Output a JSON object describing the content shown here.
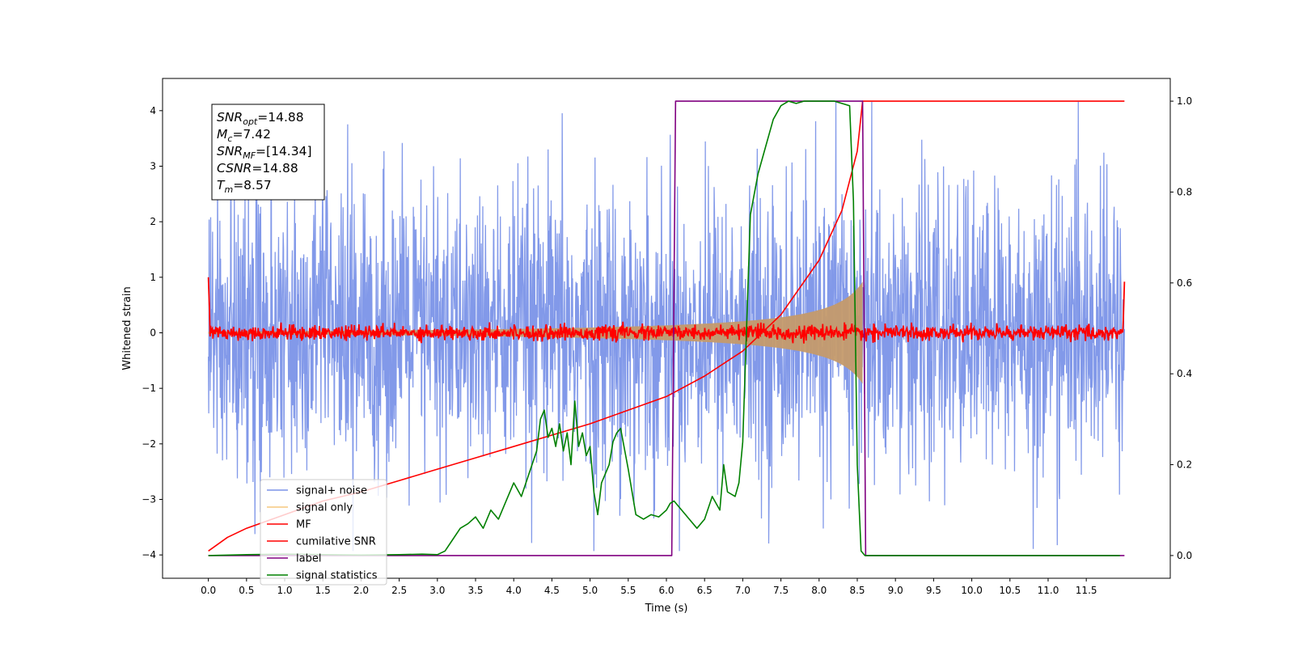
{
  "chart_data": {
    "type": "line",
    "xlabel": "Time (s)",
    "ylabel": "Whitened strain",
    "xlim": [
      -0.6,
      12.6
    ],
    "ylim": [
      -4.42,
      4.58
    ],
    "y2lim": [
      -0.05,
      1.05
    ],
    "x_ticks": [
      0.0,
      0.5,
      1.0,
      1.5,
      2.0,
      2.5,
      3.0,
      3.5,
      4.0,
      4.5,
      5.0,
      5.5,
      6.0,
      6.5,
      7.0,
      7.5,
      8.0,
      8.5,
      9.0,
      9.5,
      10.0,
      10.5,
      11.0,
      11.5
    ],
    "x_tick_labels": [
      "0.0",
      "0.5",
      "1.0",
      "1.5",
      "2.0",
      "2.5",
      "3.0",
      "3.5",
      "4.0",
      "4.5",
      "5.0",
      "5.5",
      "6.0",
      "6.5",
      "7.0",
      "7.5",
      "8.0",
      "8.5",
      "9.0",
      "9.5",
      "10.0",
      "10.5",
      "11.0",
      "11.5"
    ],
    "y_ticks": [
      -4,
      -3,
      -2,
      -1,
      0,
      1,
      2,
      3,
      4
    ],
    "y_tick_labels": [
      "−4",
      "−3",
      "−2",
      "−1",
      "0",
      "1",
      "2",
      "3",
      "4"
    ],
    "y2_ticks": [
      0.0,
      0.2,
      0.4,
      0.6,
      0.8,
      1.0
    ],
    "y2_tick_labels": [
      "0.0",
      "0.2",
      "0.4",
      "0.6",
      "0.8",
      "1.0"
    ],
    "grid": false,
    "legend_position": "lower-left",
    "info_box": {
      "snr_opt": {
        "base": "SNR",
        "sub": "opt",
        "value": "=14.88"
      },
      "mc": {
        "base": "M",
        "sub": "c",
        "value": "=7.42"
      },
      "snr_mf": {
        "base": "SNR",
        "sub": "MF",
        "value": "=[14.34]"
      },
      "csnr": {
        "base": "CSNR",
        "value": "=14.88"
      },
      "tm": {
        "base": "T",
        "sub": "m",
        "value": "=8.57"
      }
    },
    "series": [
      {
        "name": "signal+ noise",
        "color": "#7b93e8",
        "axis": "left",
        "description_values": {
          "x_range": [
            0.0,
            12.0
          ],
          "typical_amplitude": 1.2,
          "max": 4.16,
          "min": -3.93
        }
      },
      {
        "name": "signal only",
        "color": "#f5c77e",
        "axis": "left",
        "chirp": {
          "start": 0.0,
          "end": 8.57,
          "amp_start": 0.02,
          "amp_end": 0.92
        }
      },
      {
        "name": "MF",
        "color": "#ff0000",
        "axis": "left",
        "description_values": {
          "baseline": 0.0,
          "noise_amplitude": 0.12,
          "start_value": 1.0,
          "end_value": 0.92
        }
      },
      {
        "name": "cumilative SNR",
        "color": "#ff0000",
        "axis": "right",
        "x": [
          0.0,
          0.25,
          0.5,
          1.0,
          1.5,
          2.0,
          2.5,
          3.0,
          3.5,
          4.0,
          4.5,
          5.0,
          5.5,
          6.0,
          6.5,
          7.0,
          7.5,
          8.0,
          8.3,
          8.5,
          8.57,
          12.0
        ],
        "y": [
          0.01,
          0.04,
          0.06,
          0.09,
          0.12,
          0.14,
          0.165,
          0.19,
          0.215,
          0.24,
          0.265,
          0.29,
          0.32,
          0.35,
          0.395,
          0.45,
          0.53,
          0.65,
          0.76,
          0.89,
          1.0,
          1.0
        ]
      },
      {
        "name": "label",
        "color": "#800080",
        "axis": "right",
        "x": [
          0.0,
          6.07,
          6.12,
          8.57,
          8.61,
          12.0
        ],
        "y": [
          0.0,
          0.0,
          1.0,
          1.0,
          0.0,
          0.0
        ]
      },
      {
        "name": "signal statistics",
        "color": "#008000",
        "axis": "right",
        "x": [
          0.0,
          0.5,
          1.0,
          1.5,
          2.0,
          2.5,
          2.8,
          3.0,
          3.1,
          3.2,
          3.3,
          3.4,
          3.5,
          3.6,
          3.7,
          3.8,
          3.9,
          4.0,
          4.1,
          4.2,
          4.3,
          4.35,
          4.4,
          4.45,
          4.5,
          4.55,
          4.6,
          4.65,
          4.7,
          4.75,
          4.8,
          4.85,
          4.9,
          4.95,
          5.0,
          5.05,
          5.1,
          5.15,
          5.2,
          5.25,
          5.3,
          5.35,
          5.4,
          5.5,
          5.6,
          5.7,
          5.8,
          5.9,
          6.0,
          6.05,
          6.1,
          6.2,
          6.3,
          6.4,
          6.5,
          6.6,
          6.7,
          6.75,
          6.8,
          6.9,
          6.95,
          7.0,
          7.05,
          7.1,
          7.2,
          7.3,
          7.4,
          7.5,
          7.6,
          7.7,
          7.8,
          8.0,
          8.2,
          8.4,
          8.45,
          8.5,
          8.55,
          8.6,
          9.0,
          10.0,
          11.0,
          11.94
        ],
        "y": [
          0.0,
          0.002,
          0.003,
          0.002,
          0.001,
          0.002,
          0.003,
          0.002,
          0.01,
          0.035,
          0.06,
          0.07,
          0.085,
          0.06,
          0.1,
          0.08,
          0.12,
          0.16,
          0.13,
          0.18,
          0.23,
          0.3,
          0.32,
          0.26,
          0.28,
          0.24,
          0.29,
          0.23,
          0.27,
          0.2,
          0.34,
          0.24,
          0.27,
          0.22,
          0.24,
          0.14,
          0.09,
          0.16,
          0.18,
          0.2,
          0.25,
          0.27,
          0.28,
          0.19,
          0.09,
          0.08,
          0.09,
          0.085,
          0.1,
          0.115,
          0.12,
          0.1,
          0.08,
          0.06,
          0.08,
          0.13,
          0.1,
          0.2,
          0.14,
          0.13,
          0.16,
          0.25,
          0.5,
          0.75,
          0.84,
          0.9,
          0.96,
          0.99,
          1.0,
          0.995,
          1.0,
          1.0,
          1.0,
          0.99,
          0.78,
          0.2,
          0.01,
          0.0,
          0.0,
          0.0,
          0.0,
          0.0
        ]
      }
    ]
  }
}
